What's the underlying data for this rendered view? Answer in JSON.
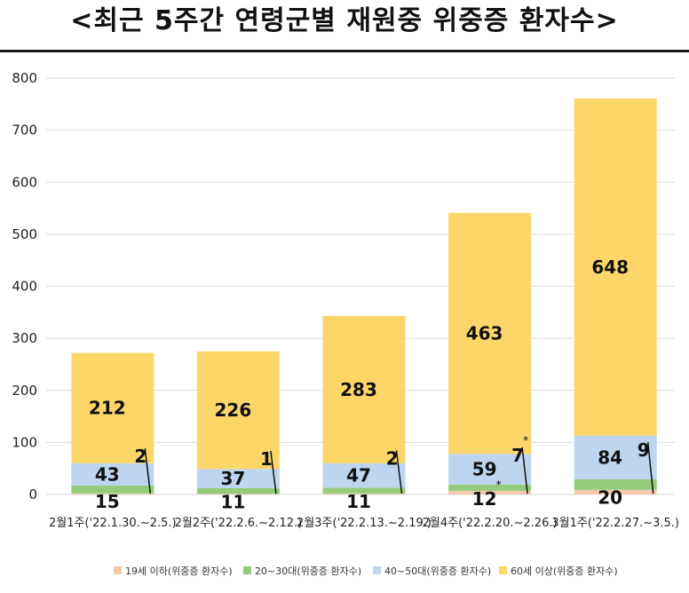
{
  "title": "<최근 5주간 연령군별 재원중 위중증 환자수>",
  "chart_data": {
    "type": "bar",
    "stacked": true,
    "categories": [
      "2월1주('22.1.30.~2.5.)",
      "2월2주('22.2.6.~2.12.)",
      "2월3주('22.2.13.~2.19.)",
      "2월4주('22.2.20.~2.26.)",
      "3월1주('22.2.27.~3.5.)"
    ],
    "series": [
      {
        "name": "19세 이하(위중증 환자수)",
        "color": "#f4c9ad",
        "values": [
          2,
          1,
          2,
          7,
          9
        ]
      },
      {
        "name": "20~30대(위중증 환자수)",
        "color": "#93cc7b",
        "values": [
          15,
          11,
          11,
          12,
          20
        ]
      },
      {
        "name": "40~50대(위중증 환자수)",
        "color": "#bdd5ee",
        "values": [
          43,
          37,
          47,
          59,
          84
        ]
      },
      {
        "name": "60세 이상(위중증 환자수)",
        "color": "#fdd66a",
        "values": [
          212,
          226,
          283,
          463,
          648
        ]
      }
    ],
    "yticks": [
      "0",
      "100",
      "200",
      "300",
      "400",
      "500",
      "600",
      "700",
      "800"
    ],
    "ylim": [
      0,
      800
    ],
    "grid": true,
    "legend_position": "bottom",
    "annotation_marks": [
      {
        "series": "19세 이하(위중증 환자수)",
        "category_index": 3,
        "text": "*"
      },
      {
        "series": "20~30대(위중증 환자수)",
        "category_index": 3,
        "text": "*"
      }
    ]
  }
}
